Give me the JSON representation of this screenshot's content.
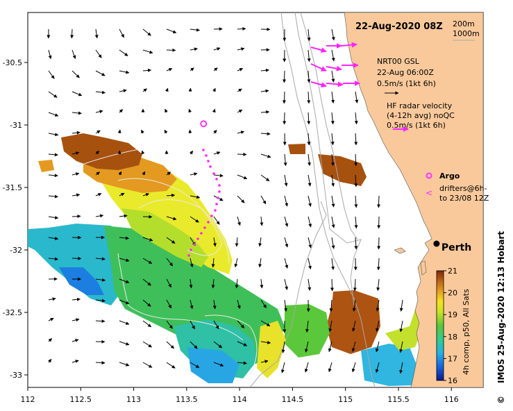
{
  "title": "22-Aug-2020 08Z",
  "depth_contours": [
    "200m",
    "1000m"
  ],
  "axes": {
    "x_ticks": [
      "112",
      "112.5",
      "113",
      "113.5",
      "114",
      "114.5",
      "115",
      "115.5",
      "116"
    ],
    "y_ticks": [
      "-30.5",
      "-31",
      "-31.5",
      "-32",
      "-32.5",
      "-33"
    ],
    "lon_range": [
      112,
      116.3
    ],
    "lat_range": [
      -33.1,
      -30.1
    ]
  },
  "legend": {
    "currents": {
      "line1": "NRT00 GSL",
      "line2": "22-Aug 06:00Z",
      "line3": "0.5m/s (1kt 6h)"
    },
    "radar": {
      "line1": "HF radar velocity",
      "line2": "(4-12h avg) noQC",
      "line3": "0.5m/s (1kt 6h)"
    },
    "argo_label": "Argo",
    "drifters_line1": "drifters@6h-",
    "drifters_line2": "to 23/08 12Z"
  },
  "city": {
    "name": "Perth",
    "lon": 115.86,
    "lat": -31.95
  },
  "argo_float": {
    "lon": 113.66,
    "lat": -30.99
  },
  "colorbar": {
    "min": 16,
    "max": 21,
    "ticks": [
      "16",
      "17",
      "18",
      "19",
      "20",
      "21"
    ],
    "label": "4h comp, p50, All Sats"
  },
  "credit": "IMOS 25-Aug-2020 12:13 Hobart",
  "copyright_symbol": "©",
  "colors": {
    "land": "#f9c99b",
    "argo": "#ff33ff",
    "drifter": "#ff22ff",
    "radar_arrow": "#ff22ff"
  }
}
